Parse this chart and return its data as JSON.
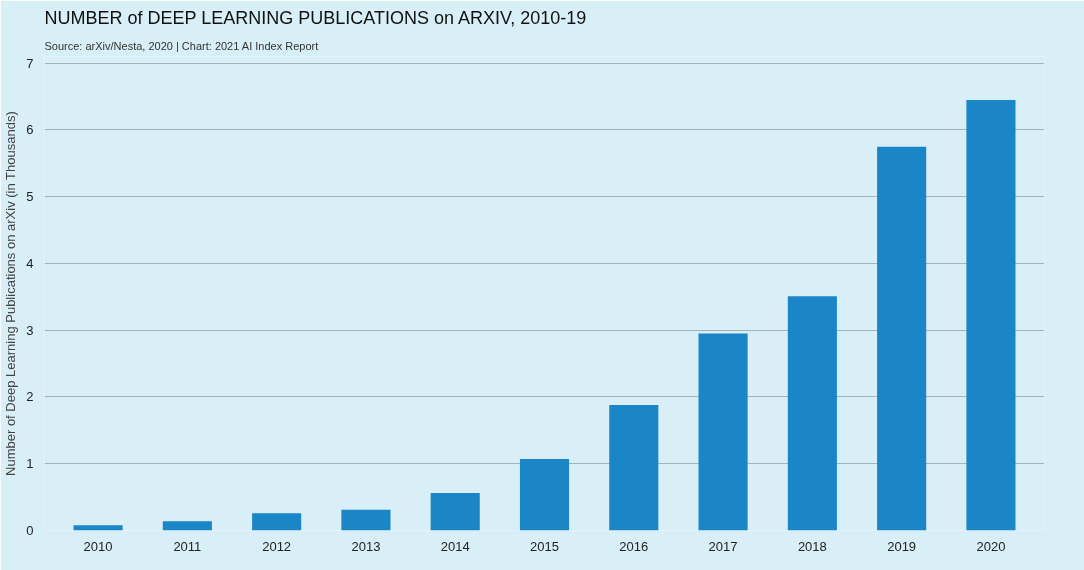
{
  "chart_data": {
    "type": "bar",
    "title": "NUMBER of DEEP LEARNING PUBLICATIONS on ARXIV, 2010-19",
    "subtitle": "Source: arXiv/Nesta, 2020 | Chart: 2021 AI Index Report",
    "ylabel": "Number of Deep Learning Publications on arXiv (in Thousands)",
    "categories": [
      "2010",
      "2011",
      "2012",
      "2013",
      "2014",
      "2015",
      "2016",
      "2017",
      "2018",
      "2019",
      "2020"
    ],
    "values": [
      0.08,
      0.14,
      0.26,
      0.31,
      0.56,
      1.07,
      1.88,
      2.95,
      3.51,
      5.75,
      6.45
    ],
    "color": "#1a86c8",
    "ylim": [
      0,
      7.1
    ],
    "yticks": [
      0,
      1,
      2,
      3,
      4,
      5,
      6,
      7
    ],
    "grid": "y"
  }
}
